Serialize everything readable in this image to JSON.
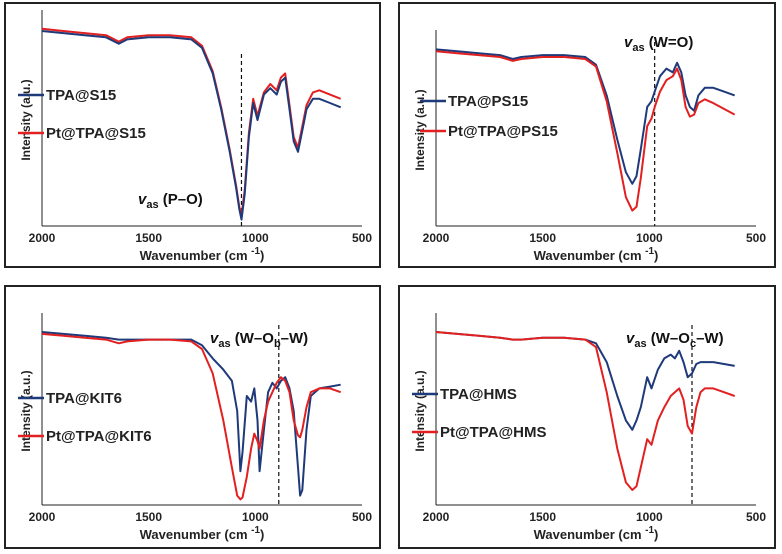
{
  "colors": {
    "series1": "#1f3a7a",
    "series2": "#e32020",
    "axis": "#222222",
    "frame": "#222222"
  },
  "chart_data": [
    {
      "type": "line",
      "xlabel": "Wavenumber (cm ",
      "xlabel_sup": "-1",
      "xlabel_close": ")",
      "ylabel": "Intensity (a.u.)",
      "xlim": [
        2000,
        500
      ],
      "xticks": [
        "2000",
        "1500",
        "1000",
        "500"
      ],
      "xtick_values": [
        2000,
        1500,
        1000,
        500
      ],
      "annotation": {
        "v": "v",
        "sub": "as",
        "text": " (P–O)",
        "subtext": "",
        "text2": "",
        "marker_x": 1065
      },
      "legend": [
        "TPA@S15",
        "Pt@TPA@S15"
      ],
      "x": [
        2000,
        1900,
        1800,
        1700,
        1640,
        1600,
        1500,
        1400,
        1300,
        1250,
        1200,
        1160,
        1120,
        1090,
        1075,
        1065,
        1050,
        1030,
        1010,
        990,
        960,
        930,
        900,
        880,
        860,
        840,
        820,
        800,
        780,
        760,
        730,
        700,
        650,
        600
      ],
      "series": [
        {
          "name": "TPA@S15",
          "values": [
            92,
            91,
            90,
            89,
            86,
            88,
            89,
            89,
            88,
            84,
            72,
            55,
            35,
            18,
            8,
            3,
            15,
            42,
            58,
            50,
            62,
            65,
            62,
            68,
            70,
            55,
            40,
            35,
            45,
            55,
            60,
            60,
            58,
            56
          ]
        },
        {
          "name": "Pt@TPA@S15",
          "values": [
            93,
            92,
            91,
            90,
            87,
            89,
            90,
            90,
            89,
            85,
            73,
            56,
            36,
            19,
            9,
            5,
            17,
            44,
            60,
            52,
            63,
            67,
            64,
            70,
            72,
            57,
            42,
            37,
            47,
            57,
            63,
            64,
            62,
            60
          ]
        }
      ]
    },
    {
      "type": "line",
      "xlabel": "Wavenumber (cm ",
      "xlabel_sup": "-1",
      "xlabel_close": ")",
      "ylabel": "Intensity (a.u.)",
      "xlim": [
        2000,
        500
      ],
      "xticks": [
        "2000",
        "1500",
        "1000",
        "500"
      ],
      "xtick_values": [
        2000,
        1500,
        1000,
        500
      ],
      "annotation": {
        "v": "v",
        "sub": "as",
        "text": " (W=O)",
        "subtext": "",
        "text2": "",
        "marker_x": 975
      },
      "legend": [
        "TPA@PS15",
        "Pt@TPA@PS15"
      ],
      "x": [
        2000,
        1900,
        1800,
        1700,
        1640,
        1600,
        1500,
        1400,
        1300,
        1250,
        1200,
        1150,
        1110,
        1080,
        1060,
        1040,
        1010,
        990,
        975,
        950,
        920,
        890,
        870,
        850,
        830,
        810,
        790,
        770,
        740,
        700,
        650,
        600
      ],
      "series": [
        {
          "name": "TPA@PS15",
          "values": [
            92,
            91,
            90,
            89,
            87,
            88,
            89,
            89,
            88,
            84,
            68,
            45,
            28,
            22,
            26,
            40,
            62,
            65,
            70,
            78,
            82,
            80,
            85,
            80,
            68,
            62,
            60,
            68,
            72,
            72,
            70,
            68
          ]
        },
        {
          "name": "Pt@TPA@PS15",
          "values": [
            91,
            90,
            89,
            88,
            86,
            87,
            88,
            88,
            87,
            83,
            65,
            38,
            15,
            8,
            10,
            25,
            52,
            56,
            62,
            70,
            76,
            78,
            82,
            76,
            62,
            57,
            58,
            64,
            66,
            64,
            61,
            58
          ]
        }
      ]
    },
    {
      "type": "line",
      "xlabel": "Wavenumber (cm ",
      "xlabel_sup": "-1",
      "xlabel_close": ")",
      "ylabel": "Intensity (a.u.)",
      "xlim": [
        2000,
        500
      ],
      "xticks": [
        "2000",
        "1500",
        "1000",
        "500"
      ],
      "xtick_values": [
        2000,
        1500,
        1000,
        500
      ],
      "annotation": {
        "v": "v",
        "sub": "as",
        "text": " (W–O",
        "subtext": "b",
        "text2": "–W)",
        "marker_x": 890
      },
      "legend": [
        "TPA@KIT6",
        "Pt@TPA@KIT6"
      ],
      "x": [
        2000,
        1900,
        1800,
        1700,
        1640,
        1600,
        1500,
        1400,
        1300,
        1250,
        1200,
        1150,
        1110,
        1085,
        1070,
        1060,
        1040,
        1020,
        1005,
        990,
        980,
        960,
        940,
        920,
        900,
        880,
        860,
        840,
        820,
        800,
        790,
        780,
        760,
        740,
        700,
        650,
        600
      ],
      "series": [
        {
          "name": "TPA@KIT6",
          "values": [
            92,
            91,
            90,
            89,
            88,
            88,
            88,
            88,
            88,
            85,
            78,
            72,
            66,
            50,
            18,
            28,
            58,
            55,
            62,
            45,
            18,
            40,
            60,
            65,
            62,
            66,
            68,
            62,
            50,
            20,
            5,
            8,
            40,
            58,
            62,
            63,
            64
          ]
        },
        {
          "name": "Pt@TPA@KIT6",
          "values": [
            91,
            90,
            89,
            88,
            86,
            87,
            88,
            88,
            87,
            83,
            70,
            45,
            20,
            5,
            3,
            4,
            15,
            30,
            38,
            34,
            30,
            45,
            55,
            60,
            65,
            68,
            66,
            60,
            45,
            37,
            36,
            40,
            52,
            60,
            62,
            62,
            60
          ]
        }
      ]
    },
    {
      "type": "line",
      "xlabel": "Wavenumber (cm ",
      "xlabel_sup": "-1",
      "xlabel_close": ")",
      "ylabel": "Intensity (a.u.)",
      "xlim": [
        2000,
        500
      ],
      "xticks": [
        "2000",
        "1500",
        "1000",
        "500"
      ],
      "xtick_values": [
        2000,
        1500,
        1000,
        500
      ],
      "annotation": {
        "v": "v",
        "sub": "as",
        "text": " (W–O",
        "subtext": "c",
        "text2": "–W)",
        "marker_x": 800
      },
      "legend": [
        "TPA@HMS",
        "Pt@TPA@HMS"
      ],
      "x": [
        2000,
        1900,
        1800,
        1700,
        1640,
        1600,
        1500,
        1400,
        1300,
        1250,
        1200,
        1150,
        1110,
        1080,
        1060,
        1040,
        1010,
        990,
        960,
        930,
        900,
        880,
        860,
        840,
        820,
        800,
        780,
        760,
        740,
        700,
        650,
        600
      ],
      "series": [
        {
          "name": "TPA@HMS",
          "values": [
            92,
            91,
            90,
            89,
            88,
            88,
            89,
            89,
            88,
            86,
            76,
            58,
            45,
            40,
            45,
            52,
            68,
            62,
            72,
            78,
            80,
            78,
            82,
            76,
            68,
            70,
            75,
            76,
            76,
            76,
            75,
            74
          ]
        },
        {
          "name": "Pt@TPA@HMS",
          "values": [
            92,
            91,
            90,
            89,
            88,
            88,
            89,
            89,
            88,
            84,
            60,
            30,
            12,
            8,
            10,
            20,
            35,
            32,
            45,
            52,
            58,
            60,
            62,
            56,
            42,
            38,
            52,
            60,
            62,
            62,
            60,
            58
          ]
        }
      ]
    }
  ]
}
